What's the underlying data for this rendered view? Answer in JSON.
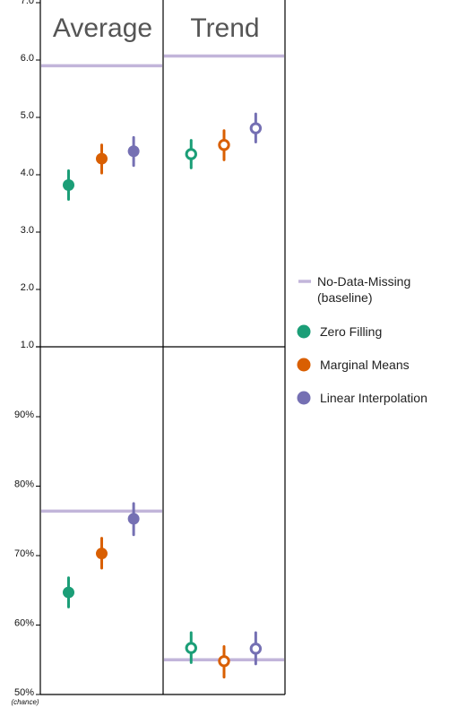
{
  "chart_data": [
    {
      "type": "scatter",
      "panel": "Average",
      "title": "Average",
      "ylim": [
        1.0,
        7.0
      ],
      "yticks": [
        "1.0",
        "2.0",
        "3.0",
        "4.0",
        "5.0",
        "6.0",
        "7.0"
      ],
      "baseline": 5.9,
      "marker": "filled",
      "series": [
        {
          "name": "Zero Filling",
          "value": 3.82,
          "ci": [
            3.57,
            4.07
          ]
        },
        {
          "name": "Marginal Means",
          "value": 4.28,
          "ci": [
            4.03,
            4.52
          ]
        },
        {
          "name": "Linear Interpolation",
          "value": 4.41,
          "ci": [
            4.16,
            4.65
          ]
        }
      ]
    },
    {
      "type": "scatter",
      "panel": "Trend",
      "title": "Trend",
      "ylim": [
        1.0,
        7.0
      ],
      "baseline": 6.07,
      "marker": "open",
      "series": [
        {
          "name": "Zero Filling",
          "value": 4.36,
          "ci": [
            4.12,
            4.6
          ]
        },
        {
          "name": "Marginal Means",
          "value": 4.52,
          "ci": [
            4.26,
            4.77
          ]
        },
        {
          "name": "Linear Interpolation",
          "value": 4.81,
          "ci": [
            4.57,
            5.06
          ]
        }
      ]
    },
    {
      "type": "scatter",
      "panel": "Average",
      "ylim": [
        50,
        100
      ],
      "yticks": [
        "50%",
        "60%",
        "70%",
        "80%",
        "90%"
      ],
      "ytick_note": "(chance)",
      "baseline": 76.4,
      "marker": "filled",
      "series": [
        {
          "name": "Zero Filling",
          "value": 64.7,
          "ci": [
            62.6,
            66.8
          ]
        },
        {
          "name": "Marginal Means",
          "value": 70.3,
          "ci": [
            68.2,
            72.5
          ]
        },
        {
          "name": "Linear Interpolation",
          "value": 75.3,
          "ci": [
            73.0,
            77.5
          ]
        }
      ]
    },
    {
      "type": "scatter",
      "panel": "Trend",
      "ylim": [
        50,
        100
      ],
      "baseline": 55.0,
      "marker": "open",
      "series": [
        {
          "name": "Zero Filling",
          "value": 56.7,
          "ci": [
            54.6,
            58.9
          ]
        },
        {
          "name": "Marginal Means",
          "value": 54.8,
          "ci": [
            52.5,
            56.9
          ]
        },
        {
          "name": "Linear Interpolation",
          "value": 56.6,
          "ci": [
            54.4,
            58.9
          ]
        }
      ]
    }
  ],
  "legend": {
    "baseline_label": "No-Data-Missing\n(baseline)",
    "items": [
      "Zero Filling",
      "Marginal Means",
      "Linear Interpolation"
    ]
  },
  "colors": {
    "Zero Filling": "#1b9e77",
    "Marginal Means": "#d95f02",
    "Linear Interpolation": "#7570b3",
    "baseline": "#c2b5da",
    "frame": "#000000"
  }
}
